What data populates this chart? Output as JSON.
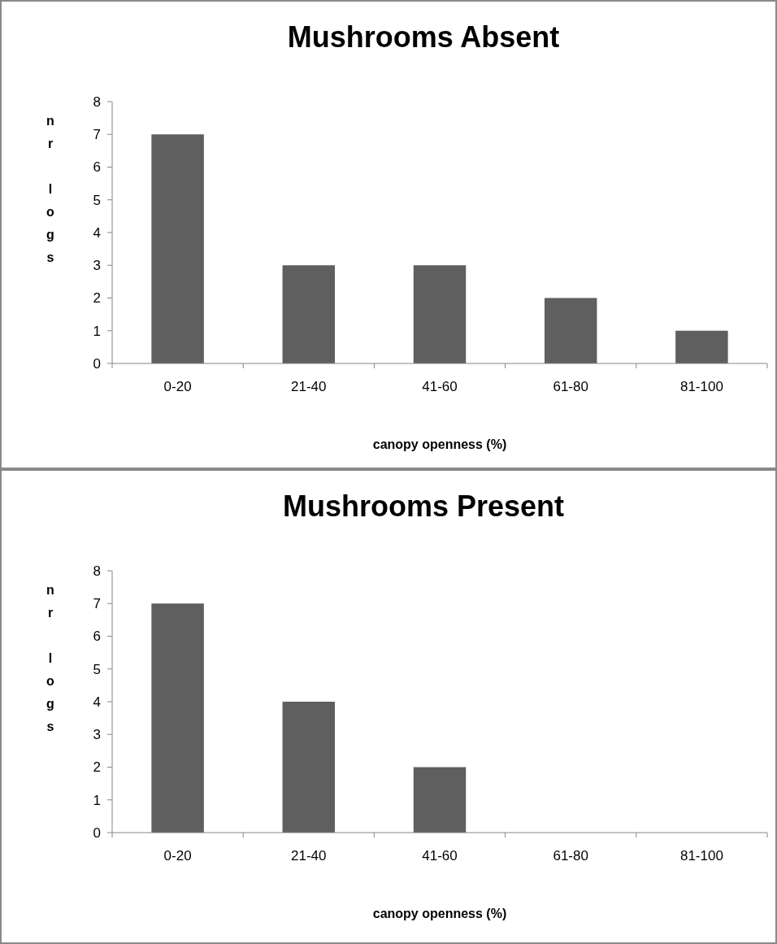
{
  "chart_data": [
    {
      "type": "bar",
      "title": "Mushrooms Absent",
      "xlabel": "canopy openness (%)",
      "ylabel": "nr logs",
      "categories": [
        "0-20",
        "21-40",
        "41-60",
        "61-80",
        "81-100"
      ],
      "values": [
        7,
        3,
        3,
        2,
        1
      ],
      "color": "#5f5f5f",
      "ylim": [
        0,
        8
      ],
      "yticks": [
        0,
        1,
        2,
        3,
        4,
        5,
        6,
        7,
        8
      ]
    },
    {
      "type": "bar",
      "title": "Mushrooms Present",
      "xlabel": "canopy openness (%)",
      "ylabel": "nr logs",
      "categories": [
        "0-20",
        "21-40",
        "41-60",
        "61-80",
        "81-100"
      ],
      "values": [
        7,
        4,
        2,
        0,
        0
      ],
      "color": "#5f5f5f",
      "ylim": [
        0,
        8
      ],
      "yticks": [
        0,
        1,
        2,
        3,
        4,
        5,
        6,
        7,
        8
      ]
    }
  ]
}
